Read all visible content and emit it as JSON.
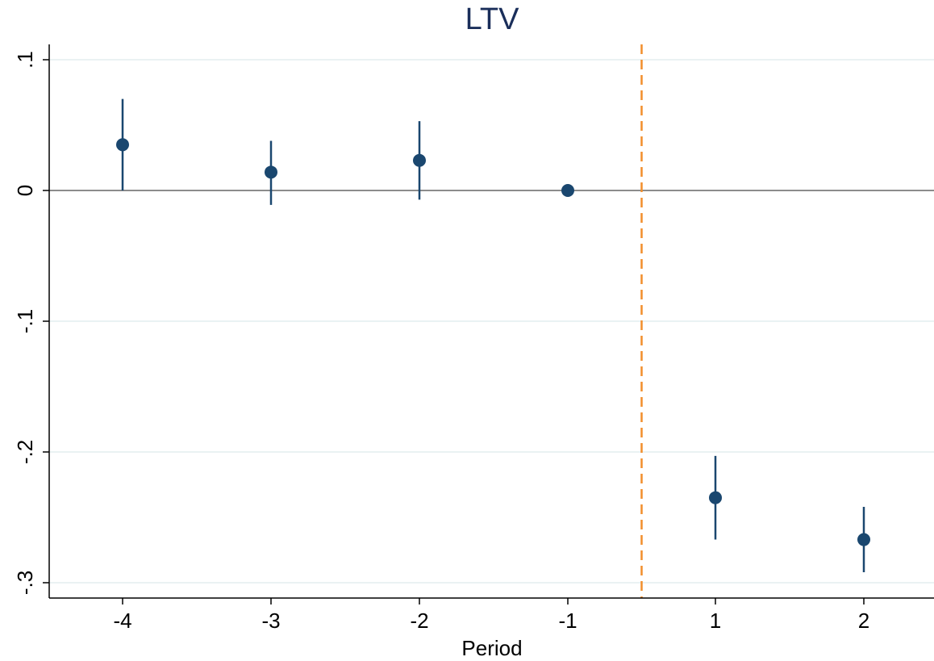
{
  "chart_data": {
    "type": "scatter",
    "title": "LTV",
    "xlabel": "Period",
    "ylabel": "",
    "x_categories": [
      "-4",
      "-3",
      "-2",
      "-1",
      "1",
      "2"
    ],
    "y_ticks": [
      ".1",
      "0",
      "-.1",
      "-.2",
      "-.3"
    ],
    "y_tick_values": [
      0.1,
      0,
      -0.1,
      -0.2,
      -0.3
    ],
    "ylim": [
      -0.31,
      0.11
    ],
    "grid": true,
    "reference_line_y": 0,
    "event_line_between": [
      "-1",
      "1"
    ],
    "series": [
      {
        "points": [
          {
            "x": "-4",
            "y": 0.035,
            "ci_low": 0.0,
            "ci_high": 0.07
          },
          {
            "x": "-3",
            "y": 0.014,
            "ci_low": -0.011,
            "ci_high": 0.038
          },
          {
            "x": "-2",
            "y": 0.023,
            "ci_low": -0.007,
            "ci_high": 0.053
          },
          {
            "x": "-1",
            "y": 0.0,
            "ci_low": 0.0,
            "ci_high": 0.0
          },
          {
            "x": "1",
            "y": -0.235,
            "ci_low": -0.267,
            "ci_high": -0.203
          },
          {
            "x": "2",
            "y": -0.267,
            "ci_low": -0.292,
            "ci_high": -0.242
          }
        ]
      }
    ],
    "colors": {
      "marker": "#1a476f",
      "title": "#1a2e5a",
      "grid": "#eaf2f3",
      "zero_line": "#8c8c8c",
      "event_line": "#f28e2b",
      "axis": "#000000"
    }
  }
}
